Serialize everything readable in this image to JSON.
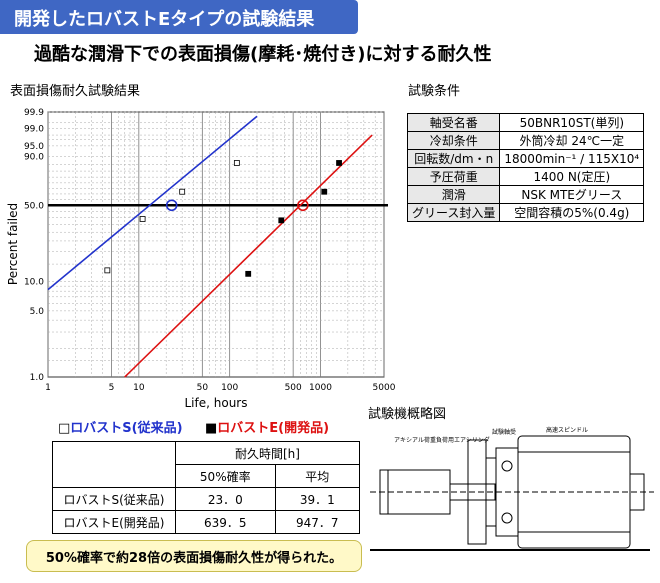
{
  "header": {
    "banner_title": "開発したロバストEタイプの試験結果",
    "subtitle": "過酷な潤滑下での表面損傷(摩耗･焼付き)に対する耐久性"
  },
  "chart_section_title": "表面損傷耐久試験結果",
  "conditions": {
    "title": "試験条件",
    "rows": [
      {
        "label": "軸受名番",
        "value": "50BNR10ST(単列)"
      },
      {
        "label": "冷却条件",
        "value": "外筒冷却 24℃一定"
      },
      {
        "label": "回転数/dm・n",
        "value": "18000min⁻¹ / 115X10⁴"
      },
      {
        "label": "予圧荷重",
        "value": "1400 N(定圧)"
      },
      {
        "label": "潤滑",
        "value": "NSK MTEグリース"
      },
      {
        "label": "グリース封入量",
        "value": "空間容積の5%(0.4g)"
      }
    ]
  },
  "legend": {
    "conventional": {
      "marker": "□",
      "label": "ロバストS(従来品)",
      "color": "#2233cc"
    },
    "developed": {
      "marker": "■",
      "label": "ロバストE(開発品)",
      "color": "#dd1111"
    }
  },
  "results_table": {
    "group_header": "耐久時間[h]",
    "col_headers": [
      "50%確率",
      "平均"
    ],
    "rows": [
      {
        "name": "ロバストS(従来品)",
        "p50": "23．0",
        "avg": "39．1"
      },
      {
        "name": "ロバストE(開発品)",
        "p50": "639．5",
        "avg": "947．7"
      }
    ]
  },
  "diagram": {
    "title": "試験機概略図",
    "labels": {
      "left": "アキシアル荷重負荷用エアシリンダ",
      "middle": "試験軸受",
      "right": "高速スピンドル"
    }
  },
  "note": "50%確率で約28倍の表面損傷耐久性が得られた。",
  "chart_data": {
    "type": "scatter",
    "xlabel": "Life, hours",
    "ylabel": "Percent failed",
    "x_scale": "log",
    "y_scale": "weibull",
    "xlim": [
      1,
      5000
    ],
    "ylim": [
      1.0,
      99.9
    ],
    "x_ticks": [
      1,
      5,
      10,
      50,
      100,
      500,
      1000,
      5000
    ],
    "y_ticks": [
      "1.0",
      "5.0",
      "10.0",
      "50.0",
      "90.0",
      "95.0",
      "99.0",
      "99.9"
    ],
    "reference_line_y": 50.0,
    "series": [
      {
        "name": "ロバストS(従来品)",
        "color": "#2233cc",
        "marker": "open-square",
        "points": [
          [
            4.5,
            13.0
          ],
          [
            11,
            39.0
          ],
          [
            30,
            62.0
          ],
          [
            120,
            86.0
          ]
        ],
        "fit_line": [
          [
            1,
            8.3
          ],
          [
            200,
            99.8
          ]
        ],
        "p50": 23.0
      },
      {
        "name": "ロバストE(開発品)",
        "color": "#dd1111",
        "marker": "filled-square",
        "points": [
          [
            160,
            12.0
          ],
          [
            370,
            38.0
          ],
          [
            1100,
            62.0
          ],
          [
            1600,
            86.0
          ]
        ],
        "fit_line": [
          [
            7,
            1.0
          ],
          [
            3700,
            98.0
          ]
        ],
        "p50": 639.5
      }
    ]
  }
}
